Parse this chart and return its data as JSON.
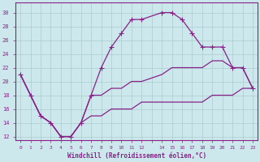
{
  "xlabel": "Windchill (Refroidissement éolien,°C)",
  "bg_color": "#cce8ec",
  "grid_color": "#aacccc",
  "line_color": "#882288",
  "xlim": [
    -0.5,
    23.5
  ],
  "ylim": [
    11.5,
    31.5
  ],
  "xtick_vals": [
    0,
    1,
    2,
    3,
    4,
    5,
    6,
    7,
    8,
    9,
    10,
    11,
    12,
    13,
    14,
    15,
    16,
    17,
    18,
    19,
    20,
    21,
    22,
    23
  ],
  "xtick_labels": [
    "0",
    "1",
    "2",
    "3",
    "4",
    "5",
    "6",
    "7",
    "8",
    "9",
    "10",
    "11",
    "12",
    "",
    "14",
    "15",
    "16",
    "17",
    "18",
    "19",
    "20",
    "21",
    "22",
    "23"
  ],
  "ytick_vals": [
    12,
    14,
    16,
    18,
    20,
    22,
    24,
    26,
    28,
    30
  ],
  "ytick_labels": [
    "12",
    "14",
    "16",
    "18",
    "20",
    "22",
    "24",
    "26",
    "28",
    "30"
  ],
  "series1_x": [
    0,
    1,
    2,
    3,
    4,
    5,
    6,
    7,
    8,
    9,
    10,
    11,
    12,
    14,
    15,
    16,
    17,
    18,
    19,
    20,
    21,
    22,
    23
  ],
  "series1_y": [
    21,
    18,
    15,
    14,
    12,
    12,
    14,
    18,
    22,
    25,
    27,
    29,
    29,
    30,
    30,
    29,
    27,
    25,
    25,
    25,
    22,
    22,
    19
  ],
  "series2_x": [
    0,
    1,
    2,
    3,
    4,
    5,
    6,
    7,
    8,
    9,
    10,
    11,
    12,
    14,
    15,
    16,
    17,
    18,
    19,
    20,
    21,
    22,
    23
  ],
  "series2_y": [
    21,
    18,
    15,
    14,
    12,
    12,
    14,
    18,
    18,
    19,
    19,
    20,
    20,
    21,
    22,
    22,
    22,
    22,
    23,
    23,
    22,
    22,
    19
  ],
  "series3_x": [
    0,
    1,
    2,
    3,
    4,
    5,
    6,
    7,
    8,
    9,
    10,
    11,
    12,
    14,
    15,
    16,
    17,
    18,
    19,
    20,
    21,
    22,
    23
  ],
  "series3_y": [
    21,
    18,
    15,
    14,
    12,
    12,
    14,
    15,
    15,
    16,
    16,
    16,
    17,
    17,
    17,
    17,
    17,
    17,
    18,
    18,
    18,
    19,
    19
  ]
}
